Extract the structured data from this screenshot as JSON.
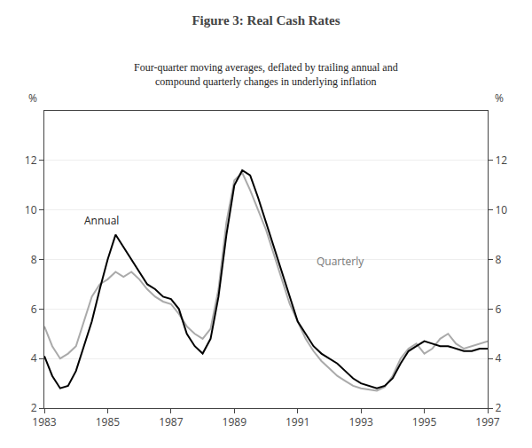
{
  "chart_data": {
    "type": "line",
    "title": "Figure 3: Real Cash Rates",
    "subtitle": "Four-quarter moving averages, deflated by trailing annual and\ncompound quarterly changes in underlying inflation",
    "ylabel": "%",
    "y2label": "%",
    "x": [
      1983.0,
      1983.25,
      1983.5,
      1983.75,
      1984.0,
      1984.25,
      1984.5,
      1984.75,
      1985.0,
      1985.25,
      1985.5,
      1985.75,
      1986.0,
      1986.25,
      1986.5,
      1986.75,
      1987.0,
      1987.25,
      1987.5,
      1987.75,
      1988.0,
      1988.25,
      1988.5,
      1988.75,
      1989.0,
      1989.25,
      1989.5,
      1989.75,
      1990.0,
      1990.25,
      1990.5,
      1990.75,
      1991.0,
      1991.25,
      1991.5,
      1991.75,
      1992.0,
      1992.25,
      1992.5,
      1992.75,
      1993.0,
      1993.25,
      1993.5,
      1993.75,
      1994.0,
      1994.25,
      1994.5,
      1994.75,
      1995.0,
      1995.25,
      1995.5,
      1995.75,
      1996.0,
      1996.25,
      1996.5,
      1996.75,
      1997.0
    ],
    "series": [
      {
        "color": "#aaaaaa",
        "values": [
          5.3,
          4.5,
          4.0,
          4.2,
          4.5,
          5.5,
          6.5,
          7.0,
          7.2,
          7.5,
          7.3,
          7.5,
          7.2,
          6.8,
          6.5,
          6.3,
          6.2,
          5.8,
          5.3,
          5.0,
          4.8,
          5.2,
          6.8,
          9.5,
          11.2,
          11.5,
          10.8,
          10.0,
          9.2,
          8.2,
          7.2,
          6.2,
          5.5,
          4.8,
          4.3,
          3.9,
          3.6,
          3.3,
          3.1,
          2.9,
          2.8,
          2.75,
          2.7,
          2.85,
          3.3,
          4.0,
          4.4,
          4.6,
          4.2,
          4.4,
          4.8,
          5.0,
          4.6,
          4.4,
          4.5,
          4.6,
          4.7
        ]
      },
      {
        "color": "#000000",
        "values": [
          4.1,
          3.3,
          2.8,
          2.9,
          3.5,
          4.5,
          5.5,
          6.8,
          8.0,
          9.0,
          8.5,
          8.0,
          7.5,
          7.0,
          6.8,
          6.5,
          6.4,
          6.0,
          5.0,
          4.5,
          4.2,
          4.8,
          6.5,
          9.0,
          11.0,
          11.6,
          11.4,
          10.5,
          9.5,
          8.5,
          7.5,
          6.5,
          5.5,
          5.0,
          4.5,
          4.2,
          4.0,
          3.8,
          3.5,
          3.2,
          3.0,
          2.9,
          2.8,
          2.9,
          3.2,
          3.8,
          4.3,
          4.5,
          4.7,
          4.6,
          4.5,
          4.5,
          4.4,
          4.3,
          4.3,
          4.4,
          4.4
        ]
      }
    ],
    "annotations": [
      {
        "text": "Annual",
        "x": 1984.2,
        "y": 9.2,
        "color": "#222222"
      },
      {
        "text": "Quarterly",
        "x": 1991.55,
        "y": 7.55,
        "color": "#777777"
      }
    ],
    "xlim": [
      1983,
      1997
    ],
    "xticks": [
      1983,
      1985,
      1987,
      1989,
      1991,
      1993,
      1995,
      1997
    ],
    "ylim": [
      2,
      14
    ],
    "yticks": [
      2,
      4,
      6,
      8,
      10,
      12
    ],
    "y2lim": [
      2,
      14
    ],
    "y2ticks": [
      2,
      4,
      6,
      8,
      10,
      12
    ],
    "grid": true
  }
}
